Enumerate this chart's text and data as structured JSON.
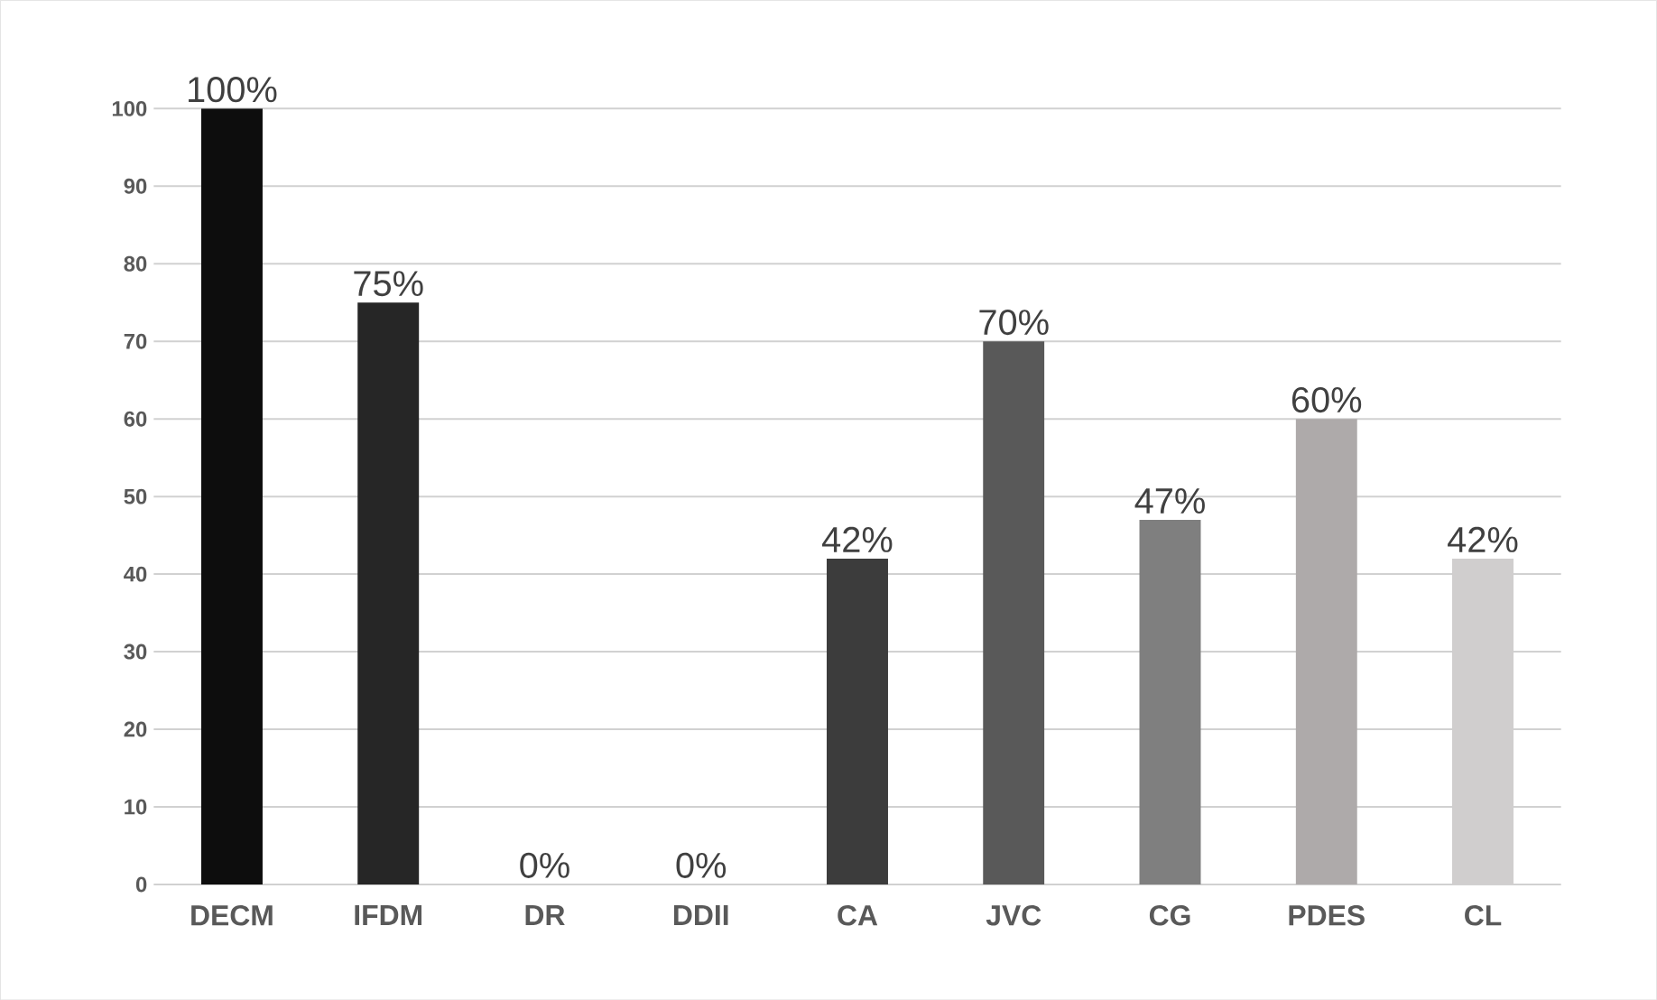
{
  "chart_data": {
    "type": "bar",
    "categories": [
      "DECM",
      "IFDM",
      "DR",
      "DDII",
      "CA",
      "JVC",
      "CG",
      "PDES",
      "CL"
    ],
    "values": [
      100,
      75,
      0,
      0,
      42,
      70,
      47,
      60,
      42
    ],
    "colors": [
      "#0d0d0d",
      "#262626",
      "#1a1a1a",
      "#1a1a1a",
      "#3c3c3c",
      "#595959",
      "#7f7f7f",
      "#aeaaaa",
      "#d0cece"
    ],
    "value_labels": [
      "100%",
      "75%",
      "0%",
      "0%",
      "42%",
      "70%",
      "47%",
      "60%",
      "42%"
    ],
    "ylim": [
      0,
      100
    ],
    "yticks": [
      0,
      10,
      20,
      30,
      40,
      50,
      60,
      70,
      80,
      90,
      100
    ],
    "grid": "y"
  }
}
